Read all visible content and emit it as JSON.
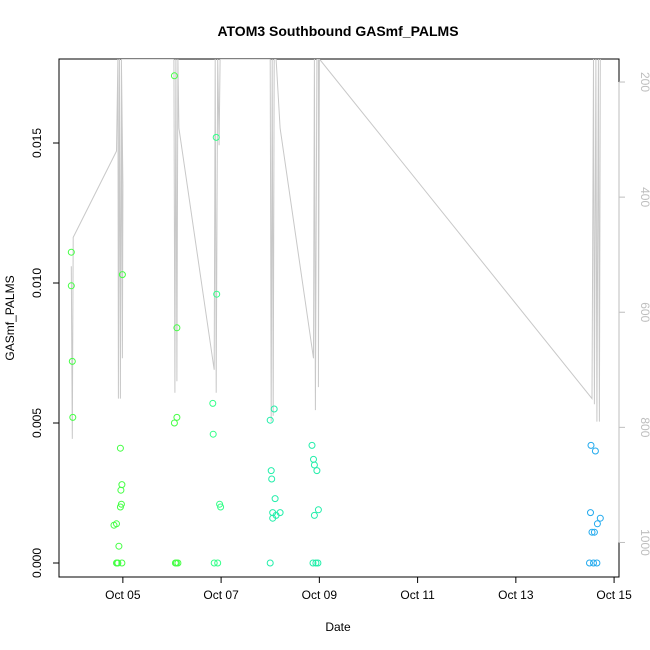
{
  "chart_data": {
    "type": "scatter",
    "title": "ATOM3 Southbound GASmf_PALMS",
    "xlabel": "Date",
    "ylabel": "GASmf_PALMS",
    "y2label": "",
    "xlim": [
      3.7,
      15.1
    ],
    "ylim": [
      -0.0005,
      0.018
    ],
    "y2lim": [
      1060,
      160
    ],
    "x_ticks": [
      {
        "value": 5,
        "label": "Oct 05"
      },
      {
        "value": 7,
        "label": "Oct 07"
      },
      {
        "value": 9,
        "label": "Oct 09"
      },
      {
        "value": 11,
        "label": "Oct 11"
      },
      {
        "value": 13,
        "label": "Oct 13"
      },
      {
        "value": 15,
        "label": "Oct 15"
      }
    ],
    "y_ticks": [
      {
        "value": 0.0,
        "label": "0.000"
      },
      {
        "value": 0.005,
        "label": "0.005"
      },
      {
        "value": 0.01,
        "label": "0.010"
      },
      {
        "value": 0.015,
        "label": "0.015"
      }
    ],
    "y2_ticks": [
      {
        "value": 200,
        "label": "200"
      },
      {
        "value": 400,
        "label": "400"
      },
      {
        "value": 600,
        "label": "600"
      },
      {
        "value": 800,
        "label": "800"
      },
      {
        "value": 1000,
        "label": "1000"
      }
    ],
    "grid": false,
    "legend": "none",
    "colors": {
      "pressure_line": "#c8c8c8",
      "axis": "#000000",
      "y2_axis": "#bebebe"
    },
    "series": [
      {
        "color": "#44ff44",
        "points": [
          [
            3.95,
            0.0111
          ],
          [
            3.95,
            0.0099
          ],
          [
            3.97,
            0.0072
          ],
          [
            3.98,
            0.0052
          ],
          [
            4.82,
            0.00135
          ],
          [
            4.87,
            0.0014
          ],
          [
            4.87,
            0.0
          ],
          [
            4.88,
            0.0
          ],
          [
            4.9,
            0.0
          ],
          [
            4.92,
            0.0006
          ],
          [
            4.95,
            0.0041
          ],
          [
            4.95,
            0.002
          ],
          [
            4.96,
            0.0026
          ],
          [
            4.97,
            0.0021
          ],
          [
            4.98,
            0.0028
          ],
          [
            4.98,
            0.0
          ],
          [
            4.99,
            0.0103
          ],
          [
            6.05,
            0.0174
          ],
          [
            6.05,
            0.005
          ],
          [
            6.07,
            0.0
          ],
          [
            6.09,
            0.0
          ],
          [
            6.1,
            0.0052
          ],
          [
            6.1,
            0.0084
          ],
          [
            6.12,
            0.0
          ]
        ]
      },
      {
        "color": "#33ff88",
        "points": [
          [
            6.83,
            0.0057
          ],
          [
            6.84,
            0.0046
          ],
          [
            6.86,
            0.0
          ],
          [
            6.9,
            0.0152
          ],
          [
            6.91,
            0.0096
          ],
          [
            6.93,
            0.0
          ],
          [
            6.97,
            0.0021
          ],
          [
            6.99,
            0.002
          ]
        ]
      },
      {
        "color": "#22eeaa",
        "points": [
          [
            8.0,
            0.0051
          ],
          [
            8.0,
            0.0
          ],
          [
            8.02,
            0.0033
          ],
          [
            8.03,
            0.003
          ],
          [
            8.05,
            0.0018
          ],
          [
            8.05,
            0.0016
          ],
          [
            8.08,
            0.0055
          ],
          [
            8.1,
            0.0023
          ],
          [
            8.12,
            0.0017
          ],
          [
            8.2,
            0.0018
          ],
          [
            8.85,
            0.0042
          ],
          [
            8.87,
            0.0
          ],
          [
            8.88,
            0.0037
          ],
          [
            8.9,
            0.0035
          ],
          [
            8.9,
            0.0017
          ],
          [
            8.93,
            0.0
          ],
          [
            8.95,
            0.0033
          ],
          [
            8.97,
            0.0
          ],
          [
            8.98,
            0.0019
          ]
        ]
      },
      {
        "color": "#22aaee",
        "points": [
          [
            14.5,
            0.0
          ],
          [
            14.52,
            0.0018
          ],
          [
            14.53,
            0.0042
          ],
          [
            14.55,
            0.0011
          ],
          [
            14.58,
            0.0
          ],
          [
            14.6,
            0.0011
          ],
          [
            14.62,
            0.004
          ],
          [
            14.65,
            0.0
          ],
          [
            14.66,
            0.0014
          ],
          [
            14.72,
            0.0016
          ]
        ]
      }
    ],
    "pressure_line": [
      [
        3.95,
        520
      ],
      [
        3.97,
        820
      ],
      [
        3.99,
        470
      ],
      [
        4.87,
        320
      ],
      [
        4.9,
        160
      ],
      [
        4.91,
        750
      ],
      [
        4.93,
        160
      ],
      [
        4.95,
        750
      ],
      [
        4.97,
        160
      ],
      [
        4.99,
        680
      ],
      [
        5.0,
        380
      ],
      [
        4.97,
        160
      ],
      [
        6.04,
        160
      ],
      [
        6.06,
        740
      ],
      [
        6.08,
        160
      ],
      [
        6.1,
        720
      ],
      [
        6.12,
        160
      ],
      [
        6.14,
        280
      ],
      [
        6.86,
        700
      ],
      [
        6.88,
        160
      ],
      [
        6.9,
        740
      ],
      [
        6.93,
        160
      ],
      [
        6.96,
        310
      ],
      [
        6.98,
        160
      ],
      [
        8.0,
        160
      ],
      [
        8.02,
        790
      ],
      [
        8.04,
        160
      ],
      [
        8.06,
        780
      ],
      [
        8.08,
        160
      ],
      [
        8.12,
        160
      ],
      [
        8.2,
        280
      ],
      [
        8.88,
        680
      ],
      [
        8.9,
        160
      ],
      [
        8.92,
        770
      ],
      [
        8.95,
        160
      ],
      [
        8.98,
        160
      ],
      [
        8.98,
        730
      ],
      [
        9.0,
        160
      ],
      [
        14.55,
        750
      ],
      [
        14.58,
        160
      ],
      [
        14.6,
        760
      ],
      [
        14.63,
        160
      ],
      [
        14.65,
        790
      ],
      [
        14.68,
        160
      ],
      [
        14.7,
        790
      ],
      [
        14.72,
        160
      ]
    ]
  }
}
